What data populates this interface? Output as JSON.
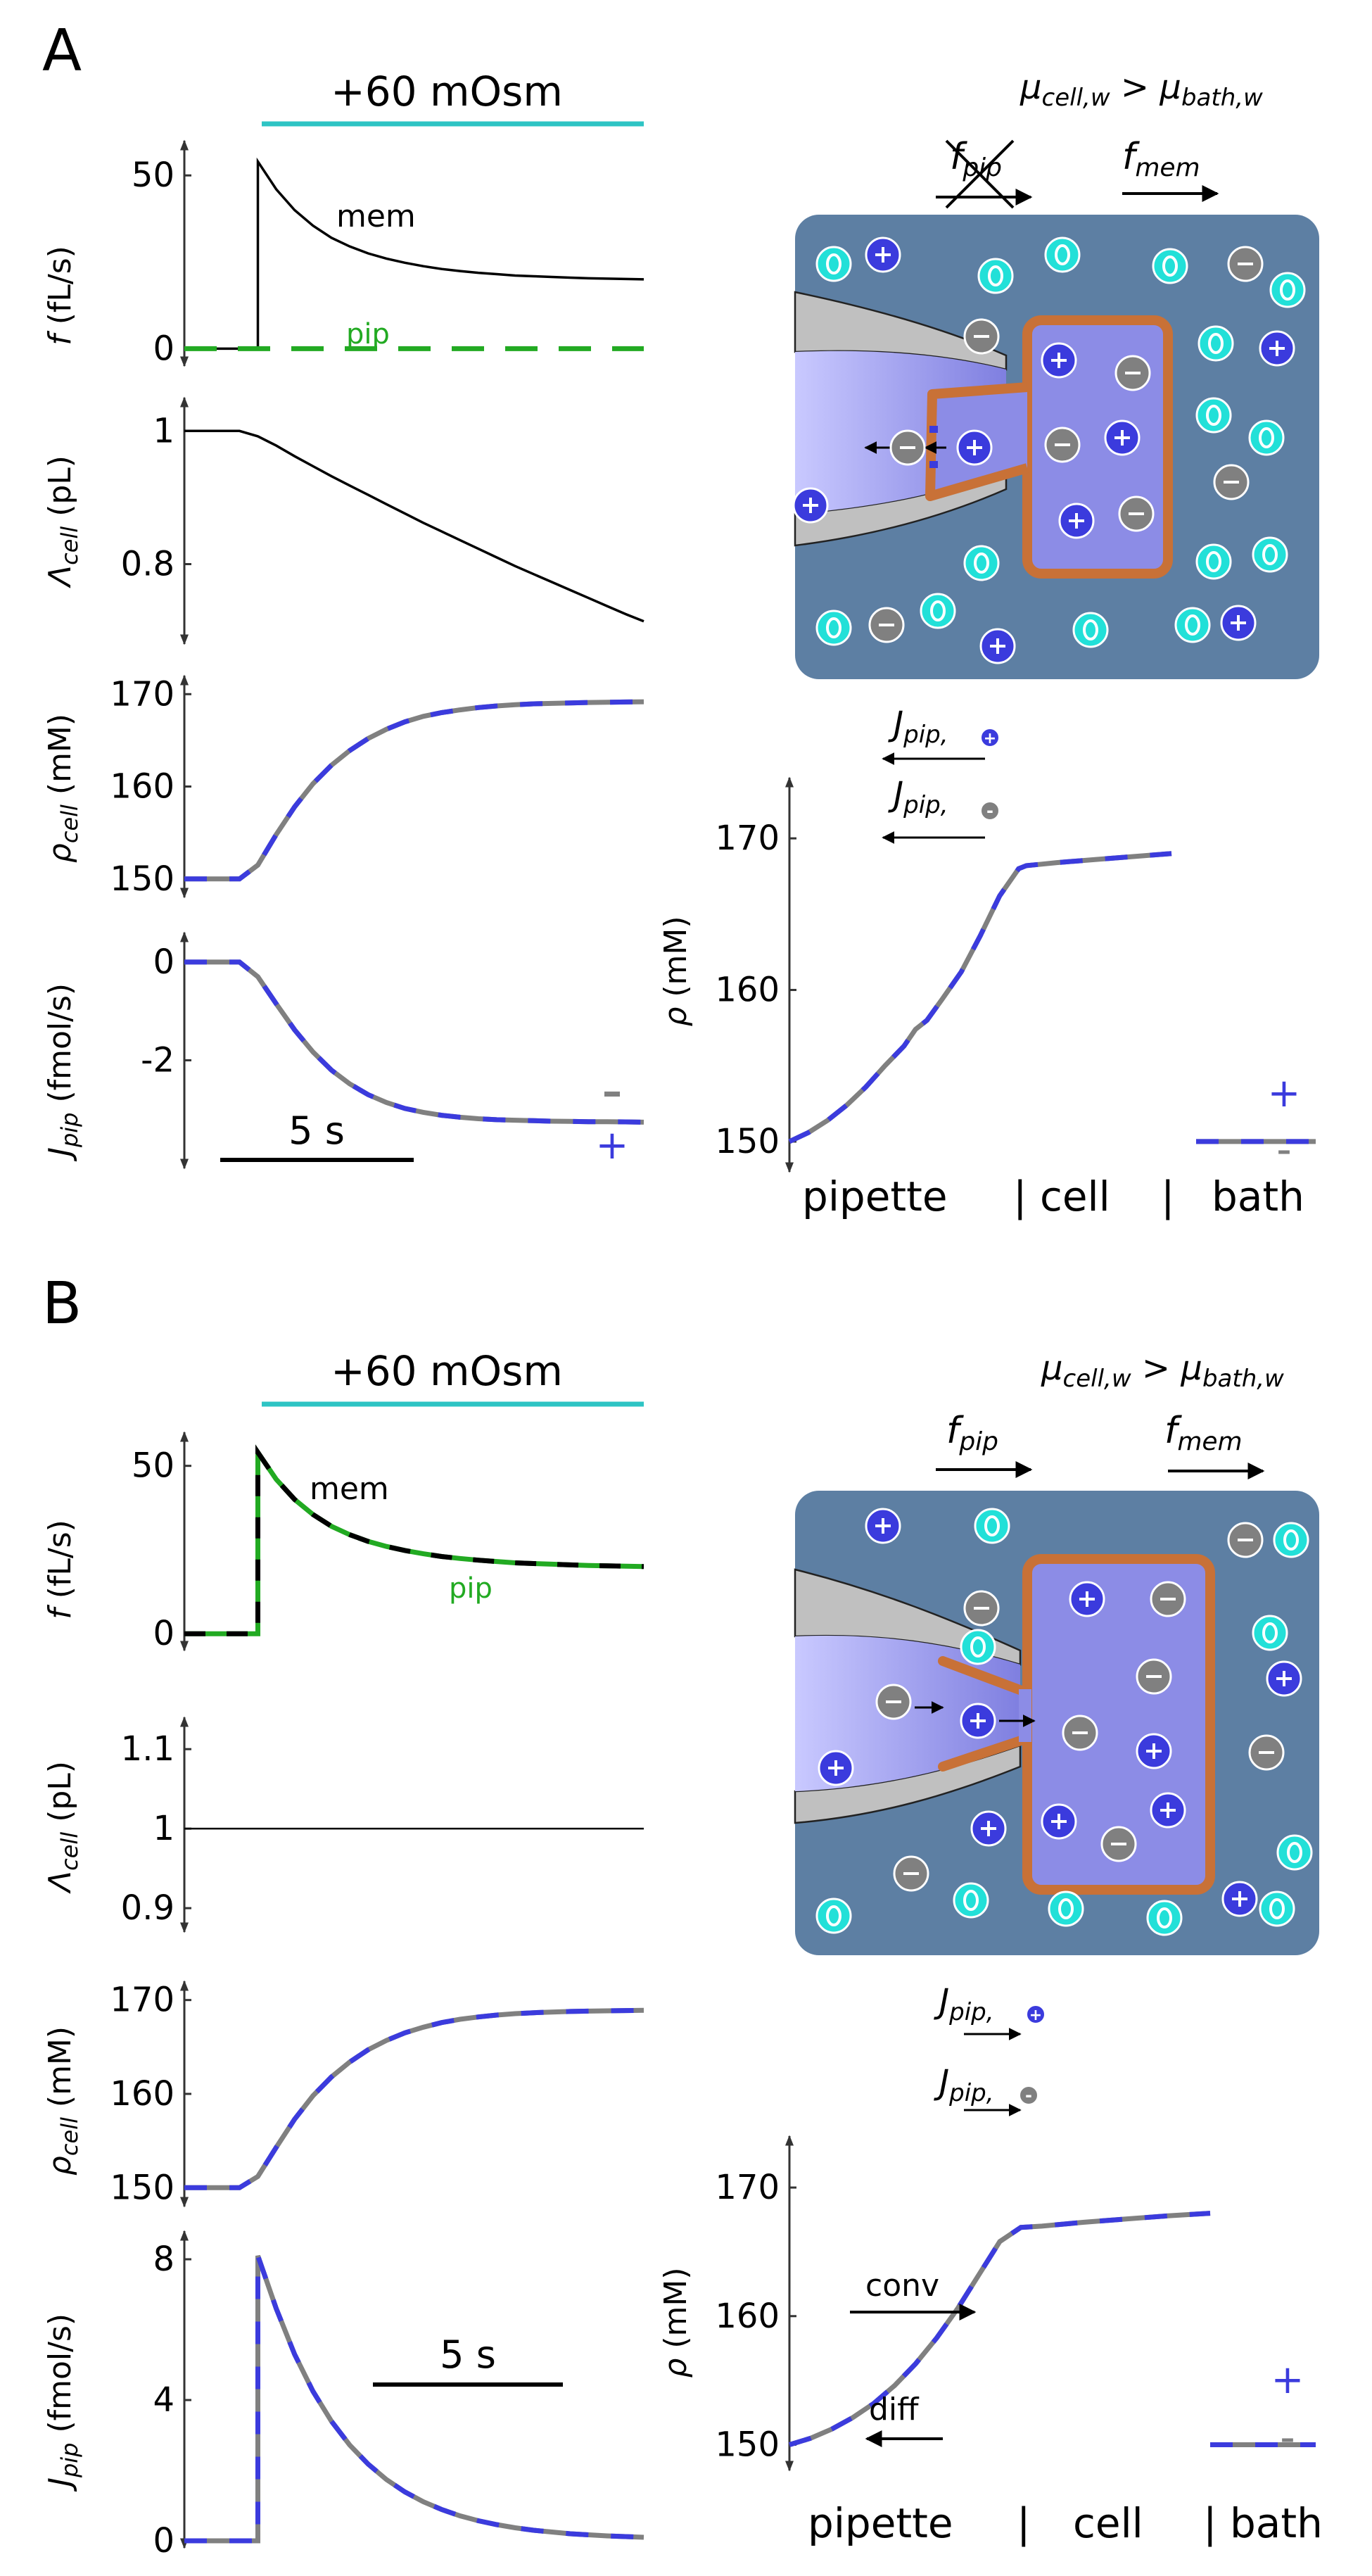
{
  "panels": {
    "A": {
      "label": "A",
      "stimulus": "+60 mOsm",
      "scale_bar": "5 s",
      "inequality": {
        "lhs": "μcell,w",
        "op": ">",
        "rhs": "μbath,w"
      },
      "fluxes": {
        "f_pip": "fpip",
        "f_mem": "fmem",
        "J_pos": "Jpip,⊕",
        "J_neg": "Jpip,⊖"
      },
      "profile_x_labels": [
        "pipette",
        "| cell",
        "|",
        "bath"
      ]
    },
    "B": {
      "label": "B",
      "stimulus": "+60 mOsm",
      "scale_bar": "5 s",
      "inequality": {
        "lhs": "μcell,w",
        "op": ">",
        "rhs": "μbath,w"
      },
      "fluxes": {
        "f_pip": "fpip",
        "f_mem": "fmem",
        "J_pos": "Jpip,⊕",
        "J_neg": "Jpip,⊖"
      },
      "annotations": {
        "conv": "conv",
        "diff": "diff"
      },
      "profile_x_labels": [
        "pipette",
        "|",
        "cell",
        "| bath"
      ]
    }
  },
  "colors": {
    "stimulus": "#2ec4c4",
    "mem": "#000000",
    "pip": "#22aa22",
    "cation": "#3b3bdd",
    "anion": "#808080",
    "bath": "#5d7fa3",
    "cell_fill": "#8c8ce6",
    "cell_membrane": "#c87137",
    "pipette_glass": "#c0c0c0",
    "water": "#22e0d8"
  },
  "chart_data": [
    {
      "panel": "A",
      "type": "line",
      "ylabel": "f (fL/s)",
      "yticks": [
        0,
        50
      ],
      "ylim": [
        -5,
        60
      ],
      "x": [
        0,
        1,
        2,
        3,
        4,
        5,
        6,
        7,
        8,
        9,
        10,
        11,
        12,
        13,
        14,
        15,
        16,
        17,
        18,
        19,
        20,
        21,
        22,
        23,
        24,
        25
      ],
      "series": [
        {
          "name": "mem",
          "style": "solid-black",
          "values": [
            0,
            0,
            0,
            0,
            54,
            46,
            40,
            35.5,
            32,
            29.5,
            27.5,
            26,
            24.8,
            23.8,
            23,
            22.4,
            21.9,
            21.5,
            21.1,
            20.9,
            20.7,
            20.5,
            20.3,
            20.2,
            20.1,
            20.0
          ]
        },
        {
          "name": "pip",
          "style": "dashed-green",
          "values": [
            0,
            0,
            0,
            0,
            0,
            0,
            0,
            0,
            0,
            0,
            0,
            0,
            0,
            0,
            0,
            0,
            0,
            0,
            0,
            0,
            0,
            0,
            0,
            0,
            0,
            0
          ]
        }
      ]
    },
    {
      "panel": "A",
      "type": "line",
      "ylabel": "Λcell (pL)",
      "yticks": [
        0.8,
        1
      ],
      "ylim": [
        0.68,
        1.05
      ],
      "x": [
        0,
        1,
        2,
        3,
        4,
        5,
        6,
        7,
        8,
        9,
        10,
        11,
        12,
        13,
        14,
        15,
        16,
        17,
        18,
        19,
        20,
        21,
        22,
        23,
        24,
        25
      ],
      "series": [
        {
          "style": "solid-black",
          "values": [
            1,
            1,
            1,
            1,
            0.992,
            0.978,
            0.962,
            0.947,
            0.932,
            0.918,
            0.904,
            0.89,
            0.876,
            0.862,
            0.849,
            0.836,
            0.823,
            0.81,
            0.797,
            0.785,
            0.773,
            0.761,
            0.749,
            0.737,
            0.725,
            0.714
          ]
        }
      ]
    },
    {
      "panel": "A",
      "type": "line",
      "ylabel": "ρcell (mM)",
      "yticks": [
        150,
        160,
        170
      ],
      "ylim": [
        148,
        172
      ],
      "x": [
        0,
        1,
        2,
        3,
        4,
        5,
        6,
        7,
        8,
        9,
        10,
        11,
        12,
        13,
        14,
        15,
        16,
        17,
        18,
        19,
        20,
        21,
        22,
        23,
        24,
        25
      ],
      "series": [
        {
          "style": "dashed-blue-gray",
          "values": [
            150,
            150,
            150,
            150,
            151.5,
            154.8,
            157.8,
            160.3,
            162.3,
            163.9,
            165.2,
            166.2,
            167.0,
            167.6,
            168.0,
            168.3,
            168.55,
            168.72,
            168.85,
            168.95,
            169.0,
            169.05,
            169.1,
            169.12,
            169.15,
            169.17
          ]
        }
      ]
    },
    {
      "panel": "A",
      "type": "line",
      "ylabel": "Jpip (fmol/s)",
      "yticks": [
        -2,
        0
      ],
      "ylim": [
        -4.2,
        0.6
      ],
      "x": [
        0,
        1,
        2,
        3,
        4,
        5,
        6,
        7,
        8,
        9,
        10,
        11,
        12,
        13,
        14,
        15,
        16,
        17,
        18,
        19,
        20,
        21,
        22,
        23,
        24,
        25
      ],
      "series": [
        {
          "style": "dashed-blue-gray",
          "values": [
            0,
            0,
            0,
            0,
            -0.3,
            -0.85,
            -1.38,
            -1.83,
            -2.2,
            -2.48,
            -2.7,
            -2.86,
            -2.98,
            -3.06,
            -3.12,
            -3.16,
            -3.19,
            -3.21,
            -3.22,
            -3.23,
            -3.24,
            -3.245,
            -3.25,
            -3.25,
            -3.255,
            -3.26
          ]
        }
      ],
      "markers": [
        "–",
        "+"
      ]
    },
    {
      "panel": "A",
      "type": "line",
      "ylabel": "ρ (mM)",
      "yticks": [
        150,
        160,
        170
      ],
      "ylim": [
        148,
        174
      ],
      "x": [
        0,
        5,
        10,
        15,
        20,
        25,
        30,
        33,
        36,
        40,
        45,
        50,
        55,
        60,
        62,
        66,
        70,
        80,
        90,
        100
      ],
      "series": [
        {
          "style": "dashed-blue-gray",
          "values": [
            150,
            150.6,
            151.4,
            152.4,
            153.6,
            155.0,
            156.3,
            157.4,
            158.0,
            159.4,
            161.2,
            163.6,
            166.2,
            168.0,
            168.2,
            168.3,
            168.4,
            168.6,
            168.8,
            169.0
          ]
        }
      ],
      "bath_level": 150,
      "markers": [
        "+",
        "–"
      ]
    },
    {
      "panel": "B",
      "type": "line",
      "ylabel": "f (fL/s)",
      "yticks": [
        0,
        50
      ],
      "ylim": [
        -5,
        60
      ],
      "x": [
        0,
        1,
        2,
        3,
        4,
        5,
        6,
        7,
        8,
        9,
        10,
        11,
        12,
        13,
        14,
        15,
        16,
        17,
        18,
        19,
        20,
        21,
        22,
        23,
        24,
        25
      ],
      "series": [
        {
          "name": "mem",
          "style": "dashed-black-green",
          "values": [
            0,
            0,
            0,
            0,
            54,
            46,
            40,
            35.5,
            32,
            29.5,
            27.5,
            26,
            24.8,
            23.8,
            23,
            22.4,
            21.9,
            21.5,
            21.1,
            20.9,
            20.7,
            20.5,
            20.3,
            20.2,
            20.1,
            20.0
          ]
        },
        {
          "name": "pip",
          "style": "dashed-green",
          "values": [
            0,
            0,
            0,
            0,
            54,
            46,
            40,
            35.5,
            32,
            29.5,
            27.5,
            26,
            24.8,
            23.8,
            23,
            22.4,
            21.9,
            21.5,
            21.1,
            20.9,
            20.7,
            20.5,
            20.3,
            20.2,
            20.1,
            20.0
          ]
        }
      ]
    },
    {
      "panel": "B",
      "type": "line",
      "ylabel": "Λcell (pL)",
      "yticks": [
        0.9,
        1,
        1.1
      ],
      "ylim": [
        0.87,
        1.14
      ],
      "x": [
        0,
        25
      ],
      "series": [
        {
          "style": "solid-black-thin",
          "values": [
            1,
            1
          ]
        }
      ]
    },
    {
      "panel": "B",
      "type": "line",
      "ylabel": "ρcell (mM)",
      "yticks": [
        150,
        160,
        170
      ],
      "ylim": [
        148,
        172
      ],
      "x": [
        0,
        1,
        2,
        3,
        4,
        5,
        6,
        7,
        8,
        9,
        10,
        11,
        12,
        13,
        14,
        15,
        16,
        17,
        18,
        19,
        20,
        21,
        22,
        23,
        24,
        25
      ],
      "series": [
        {
          "style": "dashed-blue-gray",
          "values": [
            150,
            150,
            150,
            150,
            151.2,
            154.3,
            157.3,
            159.8,
            161.8,
            163.4,
            164.7,
            165.7,
            166.5,
            167.1,
            167.6,
            167.95,
            168.2,
            168.4,
            168.55,
            168.65,
            168.72,
            168.78,
            168.82,
            168.85,
            168.88,
            168.9
          ]
        }
      ]
    },
    {
      "panel": "B",
      "type": "line",
      "ylabel": "Jpip (fmol/s)",
      "yticks": [
        0,
        4,
        8
      ],
      "ylim": [
        -0.2,
        8.8
      ],
      "x": [
        0,
        1,
        2,
        3,
        4,
        5,
        6,
        7,
        8,
        9,
        10,
        11,
        12,
        13,
        14,
        15,
        16,
        17,
        18,
        19,
        20,
        21,
        22,
        23,
        24,
        25
      ],
      "series": [
        {
          "style": "dashed-blue-gray",
          "values": [
            0,
            0,
            0,
            0,
            8.1,
            6.6,
            5.3,
            4.25,
            3.4,
            2.72,
            2.18,
            1.74,
            1.39,
            1.11,
            0.89,
            0.71,
            0.57,
            0.46,
            0.37,
            0.3,
            0.25,
            0.2,
            0.17,
            0.14,
            0.12,
            0.1
          ]
        }
      ]
    },
    {
      "panel": "B",
      "type": "line",
      "ylabel": "ρ (mM)",
      "yticks": [
        150,
        160,
        170
      ],
      "ylim": [
        148,
        174
      ],
      "x": [
        0,
        5,
        10,
        15,
        20,
        25,
        30,
        35,
        40,
        45,
        50,
        55,
        60,
        65,
        70,
        80,
        90,
        100
      ],
      "series": [
        {
          "style": "dashed-blue-gray",
          "values": [
            150,
            150.5,
            151.2,
            152.1,
            153.2,
            154.6,
            156.3,
            158.3,
            160.6,
            163.2,
            165.8,
            166.9,
            167.0,
            167.15,
            167.3,
            167.55,
            167.8,
            168.0
          ]
        }
      ],
      "bath_level": 150,
      "markers": [
        "+",
        "–"
      ]
    }
  ]
}
